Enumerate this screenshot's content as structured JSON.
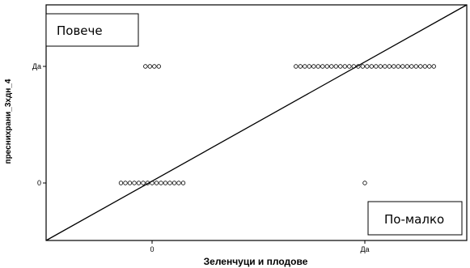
{
  "chart_data": {
    "type": "scatter",
    "xlabel": "Зеленчуци и плодове",
    "ylabel": "преснихрани_3хдн_4",
    "x_categories": [
      "0",
      "Да"
    ],
    "y_categories": [
      "0",
      "Да"
    ],
    "points": [
      {
        "x": "0",
        "y": "Да",
        "count": 4
      },
      {
        "x": "Да",
        "y": "Да",
        "count": 32
      },
      {
        "x": "0",
        "y": "0",
        "count": 15
      },
      {
        "x": "Да",
        "y": "0",
        "count": 1
      }
    ],
    "reference_line": "diagonal",
    "annotations": [
      {
        "text": "Повече",
        "position": "top-left"
      },
      {
        "text": "По-малко",
        "position": "bottom-right"
      }
    ],
    "grid": false
  }
}
